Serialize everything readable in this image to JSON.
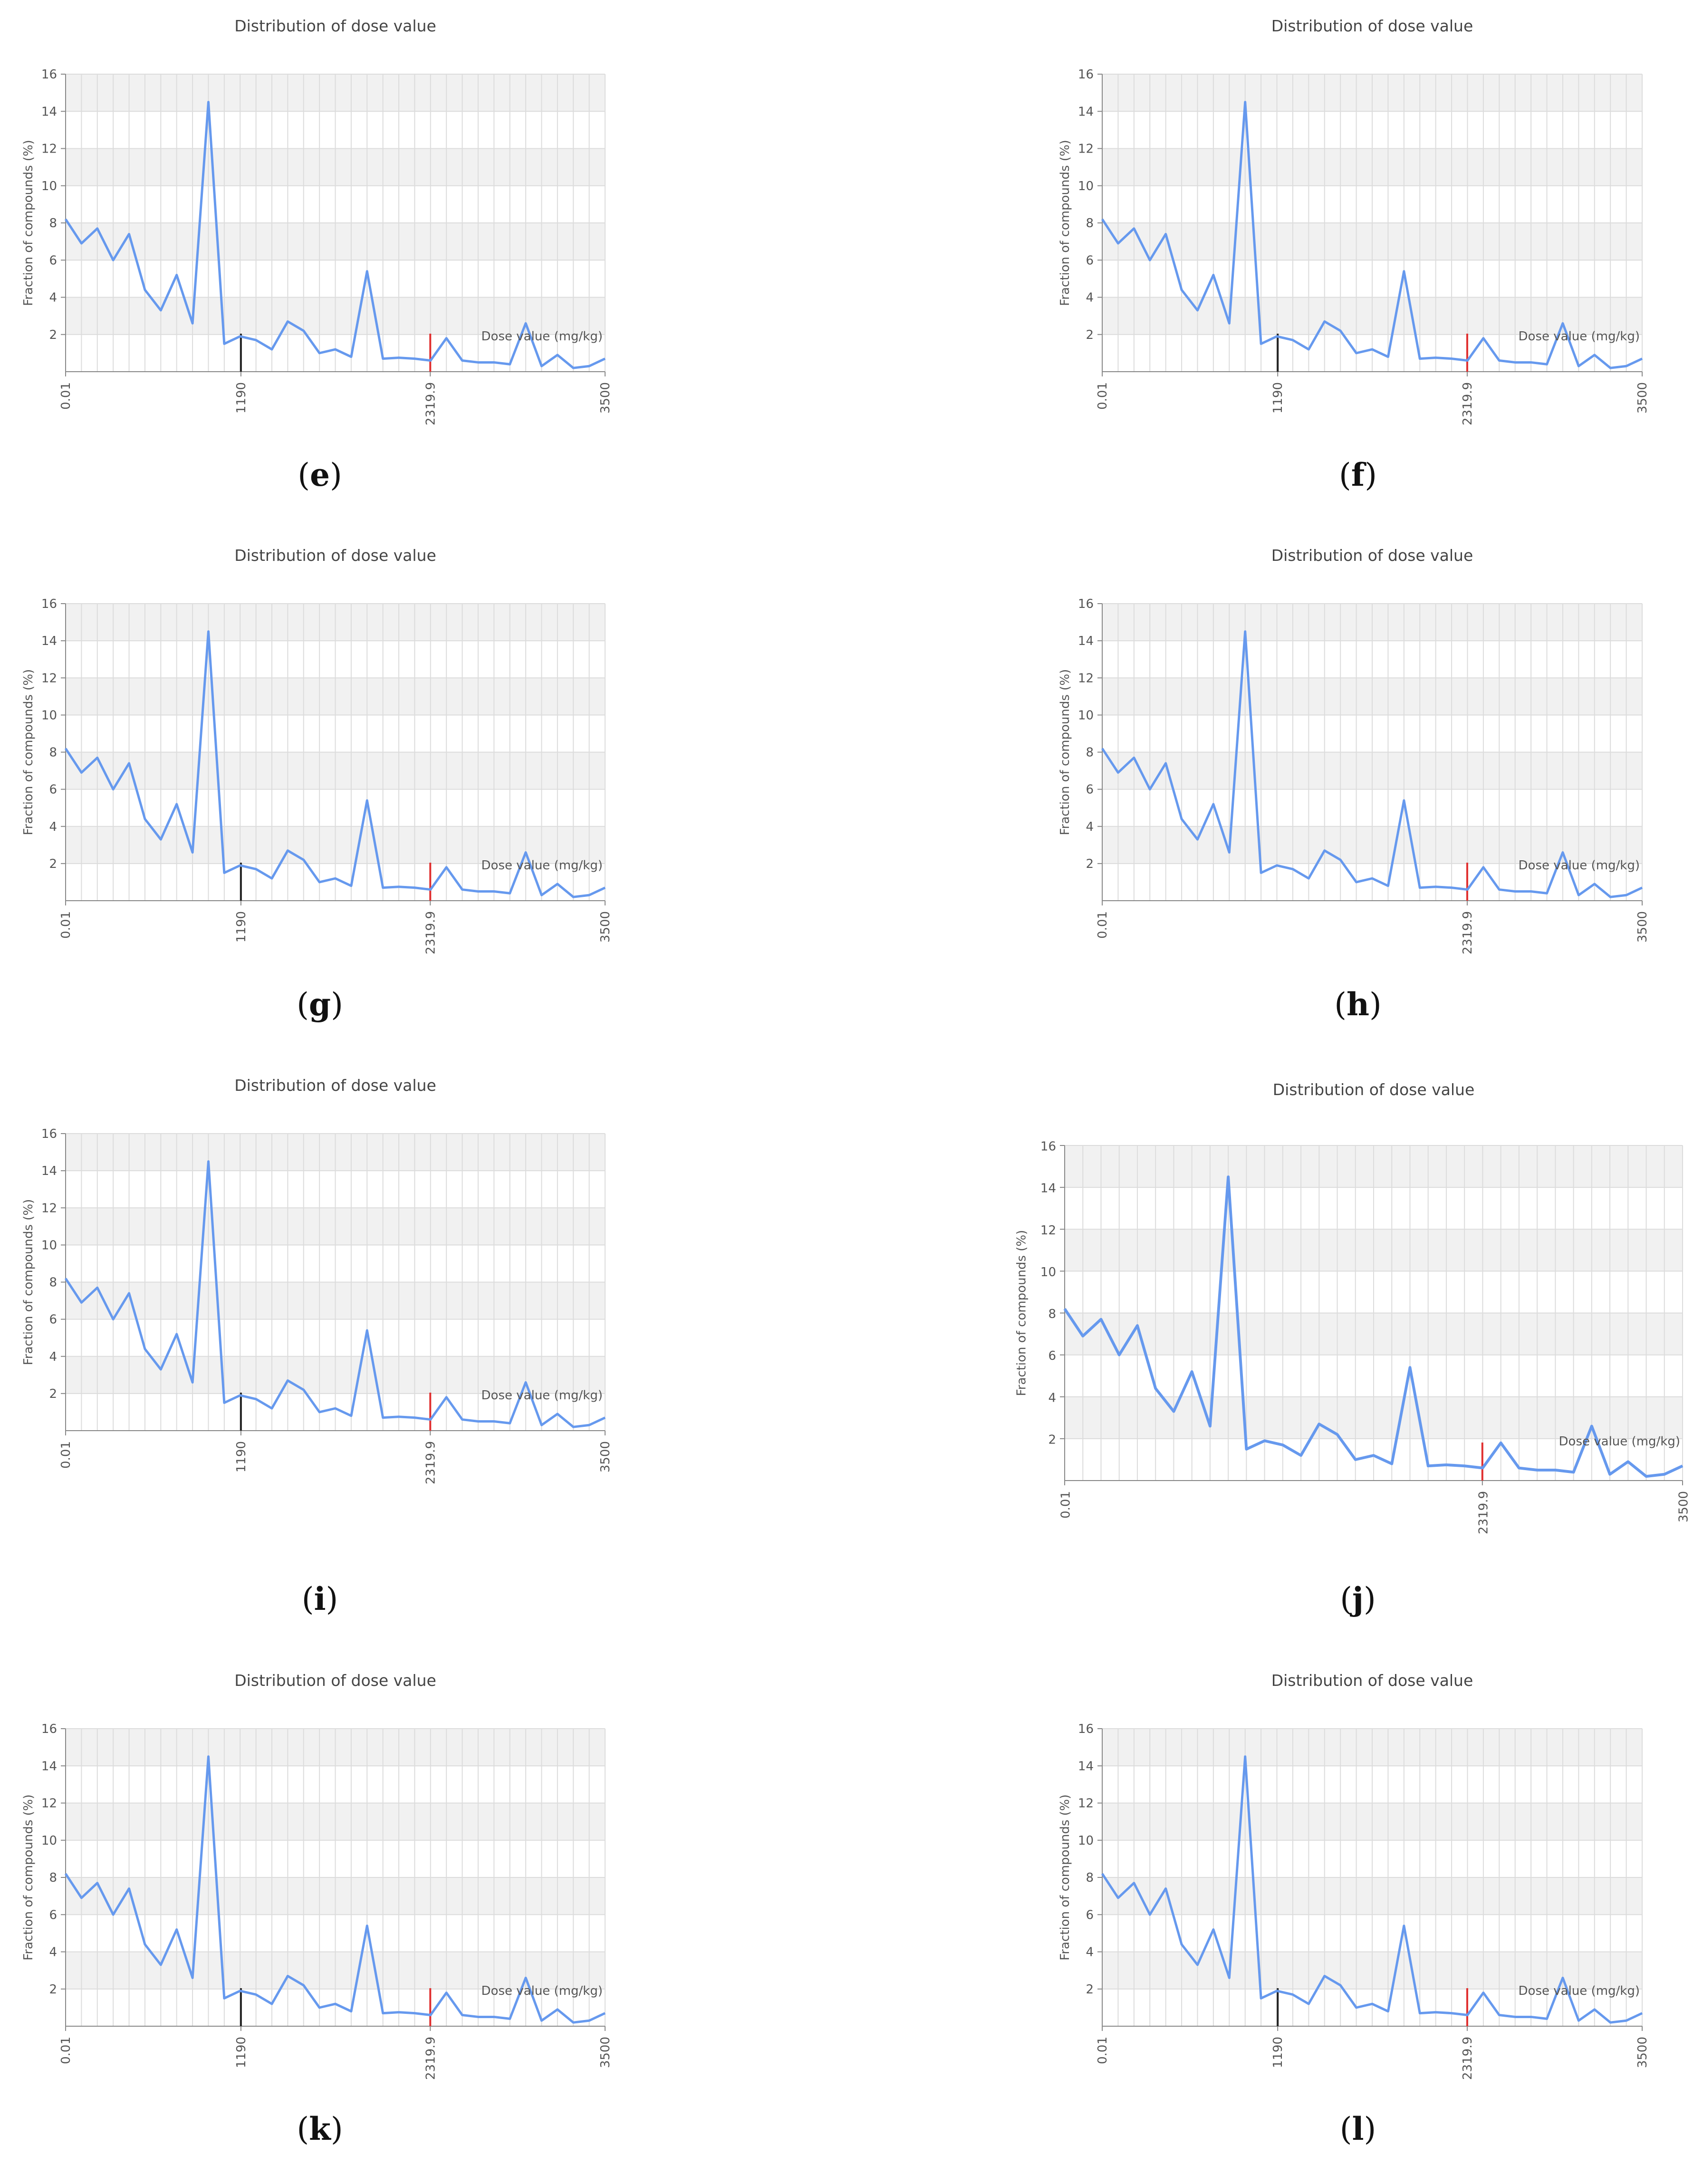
{
  "colors": {
    "line": "#6699ee",
    "band": "#f1f1f1",
    "grid": "#dcdcdc",
    "axis": "#888888",
    "marker_black": "#222222",
    "marker_red": "#e03030"
  },
  "captions": [
    "e",
    "f",
    "g",
    "h",
    "i",
    "j",
    "k",
    "l"
  ],
  "chart_data": [
    {
      "type": "line",
      "title": "Distribution of dose value",
      "xlabel": "Dose value (mg/kg)",
      "ylabel": "Fraction of compounds (%)",
      "ylim": [
        0,
        16
      ],
      "yticks": [
        "2",
        "4",
        "6",
        "8",
        "10",
        "12",
        "14",
        "16"
      ],
      "xticks": [
        "0.01",
        "1190",
        "2319.9",
        "3500"
      ],
      "markers": [
        {
          "label": "1190",
          "color": "black"
        },
        {
          "label": "2319.9",
          "color": "red"
        }
      ],
      "grid": true,
      "legend": "none",
      "values": [
        8.2,
        6.9,
        7.7,
        6.0,
        7.4,
        4.4,
        3.3,
        5.2,
        2.6,
        14.5,
        1.5,
        1.9,
        1.7,
        1.2,
        2.7,
        2.2,
        1.0,
        1.2,
        0.8,
        5.4,
        0.7,
        0.75,
        0.7,
        0.6,
        1.8,
        0.6,
        0.5,
        0.5,
        0.4,
        2.6,
        0.3,
        0.9,
        0.2,
        0.3,
        0.7
      ]
    },
    {
      "type": "line",
      "title": "Distribution of dose value",
      "xlabel": "Dose value (mg/kg)",
      "ylabel": "Fraction of compounds (%)",
      "ylim": [
        0,
        16
      ],
      "yticks": [
        "2",
        "4",
        "6",
        "8",
        "10",
        "12",
        "14",
        "16"
      ],
      "xticks": [
        "0.01",
        "1190",
        "2319.9",
        "3500"
      ],
      "markers": [
        {
          "label": "1190",
          "color": "black"
        },
        {
          "label": "2319.9",
          "color": "red"
        }
      ],
      "grid": true,
      "legend": "none",
      "values": [
        8.2,
        6.9,
        7.7,
        6.0,
        7.4,
        4.4,
        3.3,
        5.2,
        2.6,
        14.5,
        1.5,
        1.9,
        1.7,
        1.2,
        2.7,
        2.2,
        1.0,
        1.2,
        0.8,
        5.4,
        0.7,
        0.75,
        0.7,
        0.6,
        1.8,
        0.6,
        0.5,
        0.5,
        0.4,
        2.6,
        0.3,
        0.9,
        0.2,
        0.3,
        0.7
      ]
    },
    {
      "type": "line",
      "title": "Distribution of dose value",
      "xlabel": "Dose value (mg/kg)",
      "ylabel": "Fraction of compounds (%)",
      "ylim": [
        0,
        16
      ],
      "yticks": [
        "2",
        "4",
        "6",
        "8",
        "10",
        "12",
        "14",
        "16"
      ],
      "xticks": [
        "0.01",
        "1190",
        "2319.9",
        "3500"
      ],
      "markers": [
        {
          "label": "1190",
          "color": "black"
        },
        {
          "label": "2319.9",
          "color": "red"
        }
      ],
      "grid": true,
      "legend": "none",
      "values": [
        8.2,
        6.9,
        7.7,
        6.0,
        7.4,
        4.4,
        3.3,
        5.2,
        2.6,
        14.5,
        1.5,
        1.9,
        1.7,
        1.2,
        2.7,
        2.2,
        1.0,
        1.2,
        0.8,
        5.4,
        0.7,
        0.75,
        0.7,
        0.6,
        1.8,
        0.6,
        0.5,
        0.5,
        0.4,
        2.6,
        0.3,
        0.9,
        0.2,
        0.3,
        0.7
      ]
    },
    {
      "type": "line",
      "title": "Distribution of dose value",
      "xlabel": "Dose value (mg/kg)",
      "ylabel": "Fraction of compounds (%)",
      "ylim": [
        0,
        16
      ],
      "yticks": [
        "2",
        "4",
        "6",
        "8",
        "10",
        "12",
        "14",
        "16"
      ],
      "xticks": [
        "0.01",
        "2319.9",
        "3500"
      ],
      "markers": [
        {
          "label": "2319.9",
          "color": "red"
        }
      ],
      "grid": true,
      "legend": "none",
      "values": [
        8.2,
        6.9,
        7.7,
        6.0,
        7.4,
        4.4,
        3.3,
        5.2,
        2.6,
        14.5,
        1.5,
        1.9,
        1.7,
        1.2,
        2.7,
        2.2,
        1.0,
        1.2,
        0.8,
        5.4,
        0.7,
        0.75,
        0.7,
        0.6,
        1.8,
        0.6,
        0.5,
        0.5,
        0.4,
        2.6,
        0.3,
        0.9,
        0.2,
        0.3,
        0.7
      ]
    },
    {
      "type": "line",
      "title": "Distribution of dose value",
      "xlabel": "Dose value (mg/kg)",
      "ylabel": "Fraction of compounds (%)",
      "ylim": [
        0,
        16
      ],
      "yticks": [
        "2",
        "4",
        "6",
        "8",
        "10",
        "12",
        "14",
        "16"
      ],
      "xticks": [
        "0.01",
        "1190",
        "2319.9",
        "3500"
      ],
      "markers": [
        {
          "label": "1190",
          "color": "black"
        },
        {
          "label": "2319.9",
          "color": "red"
        }
      ],
      "grid": true,
      "legend": "none",
      "values": [
        8.2,
        6.9,
        7.7,
        6.0,
        7.4,
        4.4,
        3.3,
        5.2,
        2.6,
        14.5,
        1.5,
        1.9,
        1.7,
        1.2,
        2.7,
        2.2,
        1.0,
        1.2,
        0.8,
        5.4,
        0.7,
        0.75,
        0.7,
        0.6,
        1.8,
        0.6,
        0.5,
        0.5,
        0.4,
        2.6,
        0.3,
        0.9,
        0.2,
        0.3,
        0.7
      ]
    },
    {
      "type": "line",
      "title": "Distribution of dose value",
      "xlabel": "Dose value (mg/kg)",
      "ylabel": "Fraction of compounds (%)",
      "ylim": [
        0,
        16
      ],
      "yticks": [
        "2",
        "4",
        "6",
        "8",
        "10",
        "12",
        "14",
        "16"
      ],
      "xticks": [
        "0.01",
        "2319.9",
        "3500"
      ],
      "markers": [
        {
          "label": "2319.9",
          "color": "red"
        }
      ],
      "grid": true,
      "legend": "none",
      "values": [
        8.2,
        6.9,
        7.7,
        6.0,
        7.4,
        4.4,
        3.3,
        5.2,
        2.6,
        14.5,
        1.5,
        1.9,
        1.7,
        1.2,
        2.7,
        2.2,
        1.0,
        1.2,
        0.8,
        5.4,
        0.7,
        0.75,
        0.7,
        0.6,
        1.8,
        0.6,
        0.5,
        0.5,
        0.4,
        2.6,
        0.3,
        0.9,
        0.2,
        0.3,
        0.7
      ]
    },
    {
      "type": "line",
      "title": "Distribution of dose value",
      "xlabel": "Dose value (mg/kg)",
      "ylabel": "Fraction of compounds (%)",
      "ylim": [
        0,
        16
      ],
      "yticks": [
        "2",
        "4",
        "6",
        "8",
        "10",
        "12",
        "14",
        "16"
      ],
      "xticks": [
        "0.01",
        "1190",
        "2319.9",
        "3500"
      ],
      "markers": [
        {
          "label": "1190",
          "color": "black"
        },
        {
          "label": "2319.9",
          "color": "red"
        }
      ],
      "grid": true,
      "legend": "none",
      "values": [
        8.2,
        6.9,
        7.7,
        6.0,
        7.4,
        4.4,
        3.3,
        5.2,
        2.6,
        14.5,
        1.5,
        1.9,
        1.7,
        1.2,
        2.7,
        2.2,
        1.0,
        1.2,
        0.8,
        5.4,
        0.7,
        0.75,
        0.7,
        0.6,
        1.8,
        0.6,
        0.5,
        0.5,
        0.4,
        2.6,
        0.3,
        0.9,
        0.2,
        0.3,
        0.7
      ]
    },
    {
      "type": "line",
      "title": "Distribution of dose value",
      "xlabel": "Dose value (mg/kg)",
      "ylabel": "Fraction of compounds (%)",
      "ylim": [
        0,
        16
      ],
      "yticks": [
        "2",
        "4",
        "6",
        "8",
        "10",
        "12",
        "14",
        "16"
      ],
      "xticks": [
        "0.01",
        "1190",
        "2319.9",
        "3500"
      ],
      "markers": [
        {
          "label": "1190",
          "color": "black"
        },
        {
          "label": "2319.9",
          "color": "red"
        }
      ],
      "grid": true,
      "legend": "none",
      "values": [
        8.2,
        6.9,
        7.7,
        6.0,
        7.4,
        4.4,
        3.3,
        5.2,
        2.6,
        14.5,
        1.5,
        1.9,
        1.7,
        1.2,
        2.7,
        2.2,
        1.0,
        1.2,
        0.8,
        5.4,
        0.7,
        0.75,
        0.7,
        0.6,
        1.8,
        0.6,
        0.5,
        0.5,
        0.4,
        2.6,
        0.3,
        0.9,
        0.2,
        0.3,
        0.7
      ]
    }
  ]
}
